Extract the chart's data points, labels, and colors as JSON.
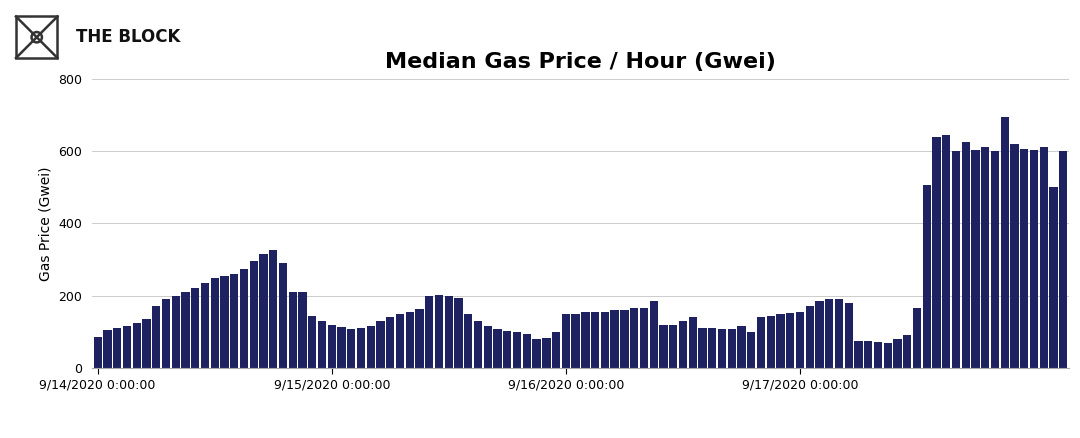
{
  "title": "Median Gas Price / Hour (Gwei)",
  "ylabel": "Gas Price (Gwei)",
  "bar_color": "#1e2260",
  "background_color": "#ffffff",
  "grid_color": "#cccccc",
  "ylim": [
    0,
    800
  ],
  "yticks": [
    0,
    200,
    400,
    600,
    800
  ],
  "xtick_labels": [
    "9/14/2020 0:00:00",
    "9/15/2020 0:00:00",
    "9/16/2020 0:00:00",
    "9/17/2020 0:00:00"
  ],
  "xtick_positions": [
    0,
    24,
    48,
    72
  ],
  "values": [
    85,
    105,
    110,
    115,
    125,
    135,
    170,
    190,
    200,
    210,
    220,
    235,
    250,
    255,
    260,
    275,
    295,
    315,
    325,
    290,
    210,
    210,
    145,
    130,
    120,
    112,
    108,
    110,
    115,
    130,
    140,
    148,
    155,
    162,
    198,
    202,
    198,
    193,
    148,
    130,
    115,
    108,
    102,
    100,
    95,
    80,
    82,
    100,
    150,
    150,
    155,
    155,
    155,
    160,
    160,
    165,
    165,
    185,
    120,
    120,
    130,
    140,
    110,
    110,
    108,
    108,
    115,
    100,
    140,
    143,
    150,
    153,
    155,
    170,
    185,
    190,
    190,
    180,
    75,
    75,
    72,
    70,
    80,
    90,
    165,
    505,
    640,
    645,
    600,
    625,
    603,
    610,
    600,
    695,
    620,
    605,
    603,
    610,
    500,
    600
  ],
  "logo_text": "THE BLOCK",
  "title_fontsize": 16,
  "axis_fontsize": 10,
  "tick_fontsize": 9,
  "figsize": [
    10.8,
    4.38
  ],
  "dpi": 100
}
